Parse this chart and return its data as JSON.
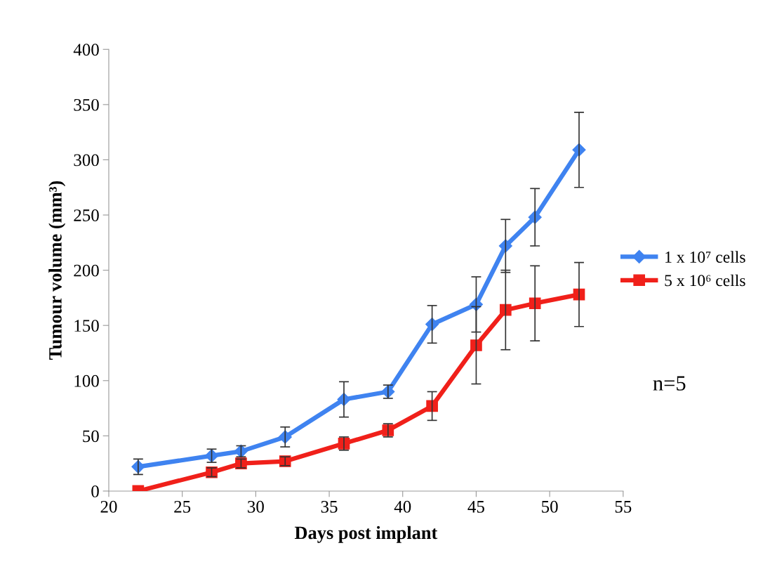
{
  "chart_data": {
    "type": "line",
    "xlabel": "Days post implant",
    "ylabel": "Tumour volume (mm³)",
    "x": [
      22,
      27,
      29,
      32,
      36,
      39,
      42,
      45,
      47,
      49,
      52
    ],
    "series": [
      {
        "name": "1 x 10⁷ cells",
        "color": "#3f83f0",
        "marker": "diamond",
        "values": [
          22,
          32,
          36,
          49,
          83,
          90,
          151,
          169,
          222,
          248,
          309
        ],
        "errors": [
          7,
          6,
          5,
          9,
          16,
          6,
          17,
          25,
          24,
          26,
          34
        ]
      },
      {
        "name": "5 x 10⁶ cells",
        "color": "#f0201a",
        "marker": "square",
        "values": [
          0,
          17,
          25,
          27,
          43,
          55,
          77,
          132,
          164,
          170,
          178
        ],
        "errors": [
          null,
          4,
          4,
          4,
          6,
          6,
          13,
          35,
          36,
          34,
          29
        ]
      }
    ],
    "xlim": [
      20,
      55
    ],
    "xticks": [
      20,
      25,
      30,
      35,
      40,
      45,
      50,
      55
    ],
    "ylim": [
      0,
      400
    ],
    "yticks": [
      0,
      50,
      100,
      150,
      200,
      250,
      300,
      350,
      400
    ],
    "grid": false,
    "legend": "right",
    "line_style": "solid",
    "annotations": [
      "n=5"
    ]
  }
}
